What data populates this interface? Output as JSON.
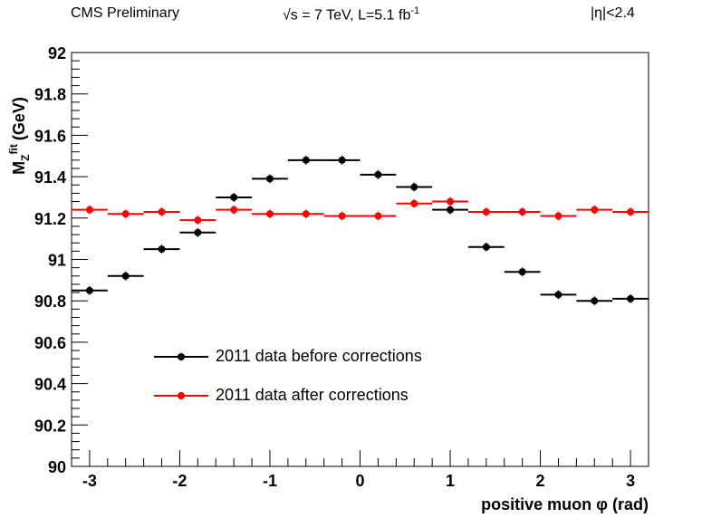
{
  "header": {
    "left": "CMS Preliminary",
    "center_pre": "√s = 7 TeV, L=5.1 fb",
    "center_sup": "-1",
    "right": "|η|<2.4"
  },
  "chart_data": {
    "type": "scatter",
    "xlabel": "positive muon φ (rad)",
    "ylabel": "M",
    "ylabel_sup": "fit",
    "ylabel_sub": "Z",
    "ylabel_unit": "(GeV)",
    "xlim": [
      -3.2,
      3.2
    ],
    "ylim": [
      90,
      92
    ],
    "x_ticks": [
      -3,
      -2,
      -1,
      0,
      1,
      2,
      3
    ],
    "x_tick_labels": [
      "-3",
      "-2",
      "-1",
      "0",
      "1",
      "2",
      "3"
    ],
    "y_ticks": [
      90,
      90.2,
      90.4,
      90.6,
      90.8,
      91,
      91.2,
      91.4,
      91.6,
      91.8,
      92
    ],
    "y_tick_labels": [
      "90",
      "90.2",
      "90.4",
      "90.6",
      "90.8",
      "91",
      "91.2",
      "91.4",
      "91.6",
      "91.8",
      "92"
    ],
    "x": [
      -3.0,
      -2.6,
      -2.2,
      -1.8,
      -1.4,
      -1.0,
      -0.6,
      -0.2,
      0.2,
      0.6,
      1.0,
      1.4,
      1.8,
      2.2,
      2.6,
      3.0
    ],
    "series": [
      {
        "name": "2011 data before corrections",
        "color": "#000000",
        "values": [
          90.85,
          90.92,
          91.05,
          91.13,
          91.3,
          91.39,
          91.48,
          91.48,
          91.41,
          91.35,
          91.24,
          91.06,
          90.94,
          90.83,
          90.8,
          90.81
        ]
      },
      {
        "name": "2011 data after corrections",
        "color": "#ff0000",
        "values": [
          91.24,
          91.22,
          91.23,
          91.19,
          91.24,
          91.22,
          91.22,
          91.21,
          91.21,
          91.27,
          91.28,
          91.23,
          91.23,
          91.21,
          91.24,
          91.23
        ]
      }
    ],
    "legend_position": "lower-left"
  }
}
